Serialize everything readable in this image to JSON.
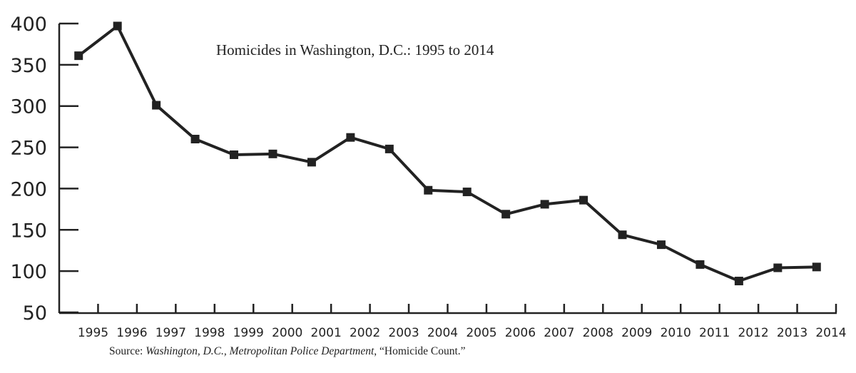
{
  "chart_data": {
    "type": "line",
    "title": "Homicides in Washington, D.C.: 1995 to 2014",
    "xlabel": "",
    "ylabel": "",
    "categories": [
      "1995",
      "1996",
      "1997",
      "1998",
      "1999",
      "2000",
      "2001",
      "2002",
      "2003",
      "2004",
      "2005",
      "2006",
      "2007",
      "2008",
      "2009",
      "2010",
      "2011",
      "2012",
      "2013",
      "2014"
    ],
    "series": [
      {
        "values": [
          361,
          397,
          301,
          260,
          241,
          242,
          232,
          262,
          248,
          198,
          196,
          169,
          181,
          186,
          144,
          132,
          108,
          88,
          104,
          105
        ]
      }
    ],
    "ylim": [
      50,
      400
    ],
    "yticks": [
      "50",
      "100",
      "150",
      "200",
      "250",
      "300",
      "350",
      "400"
    ],
    "grid": false,
    "marker": "square",
    "line_color": "#222222"
  },
  "source": {
    "prefix": "Source: ",
    "italic": "Washington, D.C., Metropolitan Police Department",
    "suffix": ", “Homicide Count.”"
  }
}
